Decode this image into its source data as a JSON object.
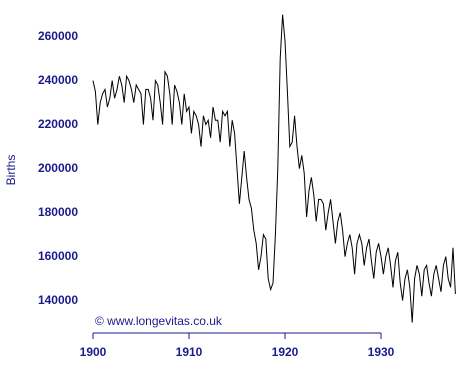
{
  "chart_data": {
    "type": "line",
    "y_label": "Births",
    "annotation": "© www.longevitas.co.uk",
    "color": "#000000",
    "axis_color": "#1a1a8c",
    "xlim": [
      1898.5,
      1939
    ],
    "ylim": [
      131000,
      272000
    ],
    "xticks": [
      1900,
      1910,
      1920,
      1930
    ],
    "yticks": [
      140000,
      160000,
      180000,
      200000,
      220000,
      240000,
      260000
    ],
    "x": [
      1900,
      1900.25,
      1900.5,
      1900.75,
      1901,
      1901.25,
      1901.5,
      1901.75,
      1902,
      1902.25,
      1902.5,
      1902.75,
      1903,
      1903.25,
      1903.5,
      1903.75,
      1904,
      1904.25,
      1904.5,
      1904.75,
      1905,
      1905.25,
      1905.5,
      1905.75,
      1906,
      1906.25,
      1906.5,
      1906.75,
      1907,
      1907.25,
      1907.5,
      1907.75,
      1908,
      1908.25,
      1908.5,
      1908.75,
      1909,
      1909.25,
      1909.5,
      1909.75,
      1910,
      1910.25,
      1910.5,
      1910.75,
      1911,
      1911.25,
      1911.5,
      1911.75,
      1912,
      1912.25,
      1912.5,
      1912.75,
      1913,
      1913.25,
      1913.5,
      1913.75,
      1914,
      1914.25,
      1914.5,
      1914.75,
      1915,
      1915.25,
      1915.5,
      1915.75,
      1916,
      1916.25,
      1916.5,
      1916.75,
      1917,
      1917.25,
      1917.5,
      1917.75,
      1918,
      1918.25,
      1918.5,
      1918.75,
      1919,
      1919.25,
      1919.5,
      1919.75,
      1920,
      1920.25,
      1920.5,
      1920.75,
      1921,
      1921.25,
      1921.5,
      1921.75,
      1922,
      1922.25,
      1922.5,
      1922.75,
      1923,
      1923.25,
      1923.5,
      1923.75,
      1924,
      1924.25,
      1924.5,
      1924.75,
      1925,
      1925.25,
      1925.5,
      1925.75,
      1926,
      1926.25,
      1926.5,
      1926.75,
      1927,
      1927.25,
      1927.5,
      1927.75,
      1928,
      1928.25,
      1928.5,
      1928.75,
      1929,
      1929.25,
      1929.5,
      1929.75,
      1930,
      1930.25,
      1930.5,
      1930.75,
      1931,
      1931.25,
      1931.5,
      1931.75,
      1932,
      1932.25,
      1932.5,
      1932.75,
      1933,
      1933.25,
      1933.5,
      1933.75,
      1934,
      1934.25,
      1934.5,
      1934.75,
      1935,
      1935.25,
      1935.5,
      1935.75,
      1936,
      1936.25,
      1936.5,
      1936.75,
      1937,
      1937.25,
      1937.5,
      1937.75
    ],
    "values": [
      240000,
      235000,
      220000,
      230000,
      234000,
      236000,
      228000,
      232000,
      240000,
      232000,
      236000,
      242000,
      238000,
      230000,
      242000,
      240000,
      236000,
      230000,
      238000,
      236000,
      234000,
      220000,
      236000,
      236000,
      232000,
      222000,
      240000,
      238000,
      230000,
      220000,
      244000,
      242000,
      234000,
      220000,
      238000,
      235000,
      230000,
      220000,
      234000,
      226000,
      228000,
      216000,
      226000,
      224000,
      220000,
      210000,
      224000,
      220000,
      222000,
      214000,
      228000,
      222000,
      222000,
      212000,
      226000,
      224000,
      226000,
      210000,
      222000,
      216000,
      200000,
      184000,
      196000,
      208000,
      196000,
      186000,
      182000,
      172000,
      166000,
      154000,
      160000,
      170000,
      168000,
      150000,
      145000,
      148000,
      170000,
      200000,
      250000,
      270000,
      258000,
      235000,
      210000,
      212000,
      224000,
      210000,
      200000,
      206000,
      198000,
      178000,
      190000,
      196000,
      188000,
      176000,
      186000,
      186000,
      184000,
      172000,
      180000,
      186000,
      176000,
      166000,
      176000,
      180000,
      172000,
      160000,
      166000,
      170000,
      164000,
      152000,
      166000,
      170000,
      166000,
      156000,
      164000,
      168000,
      158000,
      150000,
      162000,
      166000,
      160000,
      152000,
      160000,
      164000,
      156000,
      146000,
      158000,
      162000,
      148000,
      140000,
      150000,
      154000,
      146000,
      130000,
      150000,
      156000,
      152000,
      142000,
      154000,
      156000,
      148000,
      142000,
      152000,
      156000,
      150000,
      144000,
      156000,
      160000,
      150000,
      146000,
      164000,
      143000
    ]
  }
}
